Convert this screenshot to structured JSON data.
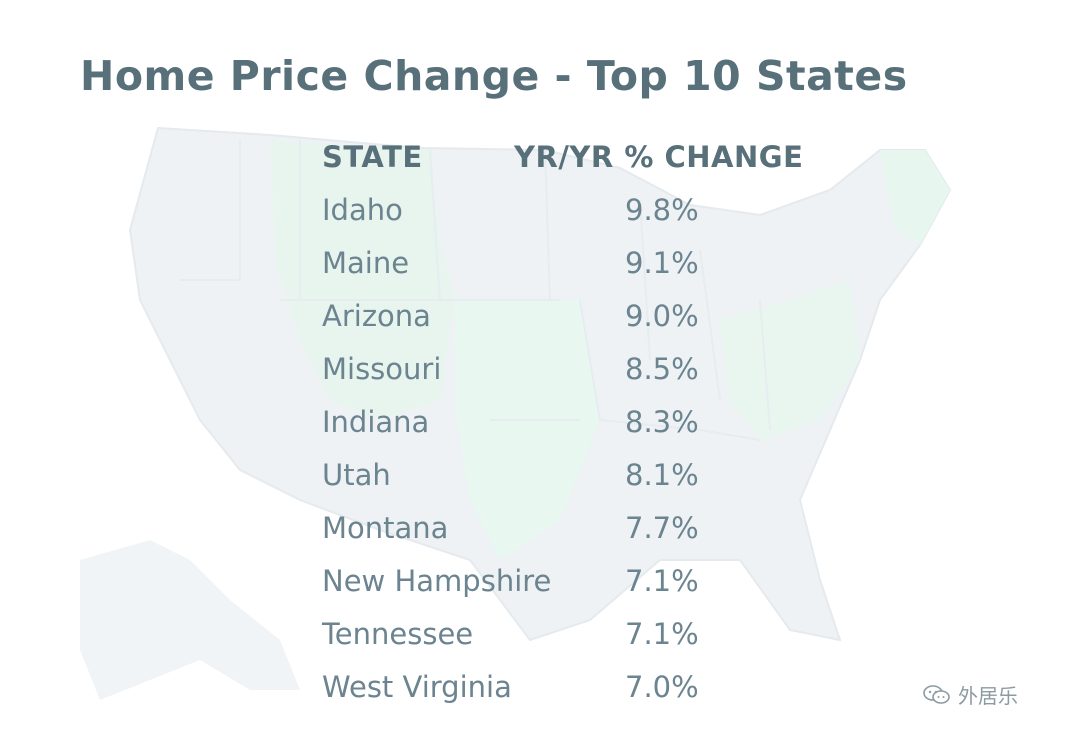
{
  "title": "Home Price Change - Top 10 States",
  "colors": {
    "title": "#587079",
    "text": "#6b8490",
    "map_fill": "#eef2f4",
    "map_highlight": "#e8f7ef"
  },
  "chart_data": {
    "type": "table",
    "title": "Home Price Change - Top 10 States",
    "columns": [
      "STATE",
      "YR/YR % CHANGE"
    ],
    "rows": [
      {
        "state": "Idaho",
        "change": "9.8%"
      },
      {
        "state": "Maine",
        "change": "9.1%"
      },
      {
        "state": "Arizona",
        "change": "9.0%"
      },
      {
        "state": "Missouri",
        "change": "8.5%"
      },
      {
        "state": "Indiana",
        "change": "8.3%"
      },
      {
        "state": "Utah",
        "change": "8.1%"
      },
      {
        "state": "Montana",
        "change": "7.7%"
      },
      {
        "state": "New Hampshire",
        "change": "7.1%"
      },
      {
        "state": "Tennessee",
        "change": "7.1%"
      },
      {
        "state": "West Virginia",
        "change": "7.0%"
      }
    ]
  },
  "watermark": {
    "text": "外居乐",
    "icon": "wechat-icon"
  }
}
